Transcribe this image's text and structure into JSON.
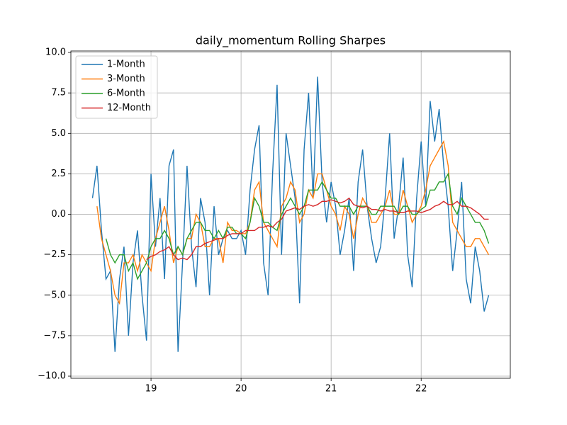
{
  "chart_data": {
    "type": "line",
    "title": "daily_momentum Rolling Sharpes",
    "x": [
      18.35,
      18.4,
      18.45,
      18.5,
      18.55,
      18.6,
      18.65,
      18.7,
      18.75,
      18.8,
      18.85,
      18.9,
      18.95,
      19.0,
      19.05,
      19.1,
      19.15,
      19.2,
      19.25,
      19.3,
      19.35,
      19.4,
      19.45,
      19.5,
      19.55,
      19.6,
      19.65,
      19.7,
      19.75,
      19.8,
      19.85,
      19.9,
      19.95,
      20.0,
      20.05,
      20.1,
      20.15,
      20.2,
      20.25,
      20.3,
      20.35,
      20.4,
      20.45,
      20.5,
      20.55,
      20.6,
      20.65,
      20.7,
      20.75,
      20.8,
      20.85,
      20.9,
      20.95,
      21.0,
      21.05,
      21.1,
      21.15,
      21.2,
      21.25,
      21.3,
      21.35,
      21.4,
      21.45,
      21.5,
      21.55,
      21.6,
      21.65,
      21.7,
      21.75,
      21.8,
      21.85,
      21.9,
      21.95,
      22.0,
      22.05,
      22.1,
      22.15,
      22.2,
      22.25,
      22.3,
      22.35,
      22.4,
      22.45,
      22.5,
      22.55,
      22.6,
      22.65,
      22.7,
      22.75
    ],
    "series": [
      {
        "name": "1-Month",
        "color": "#1f77b4",
        "values": [
          1.0,
          3.0,
          -1.0,
          -4.0,
          -3.5,
          -8.5,
          -4.0,
          -2.0,
          -7.5,
          -3.0,
          -1.0,
          -5.0,
          -7.8,
          2.5,
          -2.0,
          1.0,
          -4.0,
          3.0,
          4.0,
          -8.5,
          -3.0,
          3.0,
          -2.0,
          -4.5,
          1.0,
          -0.5,
          -5.0,
          0.5,
          -2.5,
          -1.5,
          -1.0,
          -1.5,
          -1.5,
          -1.0,
          -2.5,
          1.5,
          4.0,
          5.5,
          -3.0,
          -5.0,
          2.5,
          8.0,
          -2.5,
          5.0,
          3.0,
          1.0,
          -5.5,
          4.0,
          7.5,
          1.0,
          8.5,
          2.0,
          -0.5,
          2.0,
          0.5,
          -2.5,
          -1.0,
          1.0,
          -3.5,
          2.0,
          4.0,
          0.5,
          -1.5,
          -3.0,
          -2.0,
          1.0,
          5.0,
          -1.5,
          0.5,
          3.5,
          -2.5,
          -4.5,
          1.0,
          4.5,
          0.5,
          7.0,
          4.5,
          6.5,
          3.0,
          0.5,
          -3.5,
          -1.0,
          2.0,
          -4.0,
          -5.5,
          -2.0,
          -3.5,
          -6.0,
          -5.0
        ]
      },
      {
        "name": "3-Month",
        "color": "#ff7f0e",
        "values": [
          null,
          0.5,
          -1.5,
          -2.5,
          -3.5,
          -5.0,
          -5.5,
          -3.0,
          -3.0,
          -2.5,
          -3.5,
          -2.5,
          -3.0,
          -3.5,
          -1.5,
          -0.5,
          0.5,
          -1.0,
          -3.0,
          -2.0,
          -2.5,
          -1.5,
          -1.5,
          0.0,
          -0.5,
          -2.0,
          -2.0,
          -1.5,
          -1.5,
          -3.0,
          -0.5,
          -1.0,
          -1.0,
          -1.2,
          -1.2,
          -0.5,
          1.5,
          2.0,
          -0.5,
          -1.0,
          -1.5,
          -2.0,
          0.5,
          1.0,
          2.0,
          1.5,
          -0.5,
          0.0,
          1.5,
          1.0,
          2.5,
          2.5,
          1.5,
          0.5,
          0.0,
          -1.0,
          0.5,
          0.0,
          -1.5,
          0.0,
          1.0,
          0.5,
          -0.5,
          -0.5,
          0.0,
          0.5,
          1.5,
          0.0,
          0.0,
          1.5,
          0.5,
          -0.5,
          0.0,
          0.5,
          1.5,
          3.0,
          3.5,
          4.0,
          4.5,
          3.0,
          -0.5,
          -1.0,
          -1.5,
          -2.0,
          -2.0,
          -1.5,
          -1.5,
          -2.0,
          -2.5
        ]
      },
      {
        "name": "6-Month",
        "color": "#2ca02c",
        "values": [
          null,
          null,
          null,
          -1.5,
          -2.5,
          -3.0,
          -2.5,
          -2.5,
          -3.5,
          -3.0,
          -4.0,
          -3.5,
          -3.0,
          -2.0,
          -1.5,
          -1.5,
          -1.0,
          -1.5,
          -2.5,
          -2.0,
          -2.5,
          -1.5,
          -1.0,
          -0.5,
          -0.5,
          -1.0,
          -1.0,
          -1.5,
          -1.0,
          -1.5,
          -0.8,
          -0.8,
          -1.2,
          -1.2,
          -1.5,
          -0.5,
          1.0,
          0.5,
          -0.5,
          -0.5,
          -0.8,
          -1.0,
          0.0,
          0.5,
          1.0,
          0.5,
          0.0,
          0.5,
          1.5,
          1.5,
          1.5,
          2.0,
          1.5,
          1.0,
          1.0,
          0.5,
          0.5,
          0.5,
          0.0,
          0.5,
          0.5,
          0.5,
          0.0,
          0.0,
          0.5,
          0.5,
          0.5,
          0.5,
          0.0,
          0.5,
          0.5,
          0.0,
          0.0,
          0.3,
          0.5,
          1.5,
          1.5,
          2.0,
          2.0,
          2.5,
          0.5,
          0.0,
          1.0,
          0.5,
          0.0,
          -0.5,
          -0.5,
          -1.0,
          -1.8
        ]
      },
      {
        "name": "12-Month",
        "color": "#d62728",
        "values": [
          null,
          null,
          null,
          null,
          null,
          null,
          null,
          null,
          null,
          null,
          null,
          null,
          -2.8,
          -2.6,
          -2.5,
          -2.3,
          -2.2,
          -2.0,
          -2.5,
          -2.8,
          -2.7,
          -2.8,
          -2.5,
          -2.0,
          -2.0,
          -1.8,
          -1.7,
          -1.6,
          -1.5,
          -1.5,
          -1.3,
          -1.2,
          -1.2,
          -1.2,
          -1.0,
          -1.0,
          -1.0,
          -0.8,
          -0.8,
          -0.7,
          -0.8,
          -0.5,
          -0.3,
          0.2,
          0.3,
          0.4,
          0.3,
          0.5,
          0.6,
          0.5,
          0.6,
          0.8,
          0.8,
          0.9,
          0.8,
          0.7,
          0.8,
          1.0,
          0.6,
          0.5,
          0.4,
          0.5,
          0.3,
          0.3,
          0.2,
          0.3,
          0.2,
          0.2,
          0.1,
          0.1,
          0.2,
          0.2,
          0.2,
          0.1,
          0.2,
          0.3,
          0.5,
          0.6,
          0.8,
          0.6,
          0.6,
          0.8,
          0.5,
          0.5,
          0.4,
          0.2,
          0.0,
          -0.3,
          -0.3
        ]
      }
    ],
    "xlim": [
      18.11,
      22.99
    ],
    "xticks": [
      19,
      20,
      21,
      22
    ],
    "ylim": [
      -10.13,
      10.09
    ],
    "yticks": [
      {
        "value": -10,
        "label": "−10.0"
      },
      {
        "value": -7.5,
        "label": "−7.5"
      },
      {
        "value": -5,
        "label": "−5.0"
      },
      {
        "value": -2.5,
        "label": "−2.5"
      },
      {
        "value": 0,
        "label": "0.0"
      },
      {
        "value": 2.5,
        "label": "2.5"
      },
      {
        "value": 5,
        "label": "5.0"
      },
      {
        "value": 7.5,
        "label": "7.5"
      },
      {
        "value": 10,
        "label": "10.0"
      }
    ],
    "grid": true,
    "legend": "upper-left"
  }
}
